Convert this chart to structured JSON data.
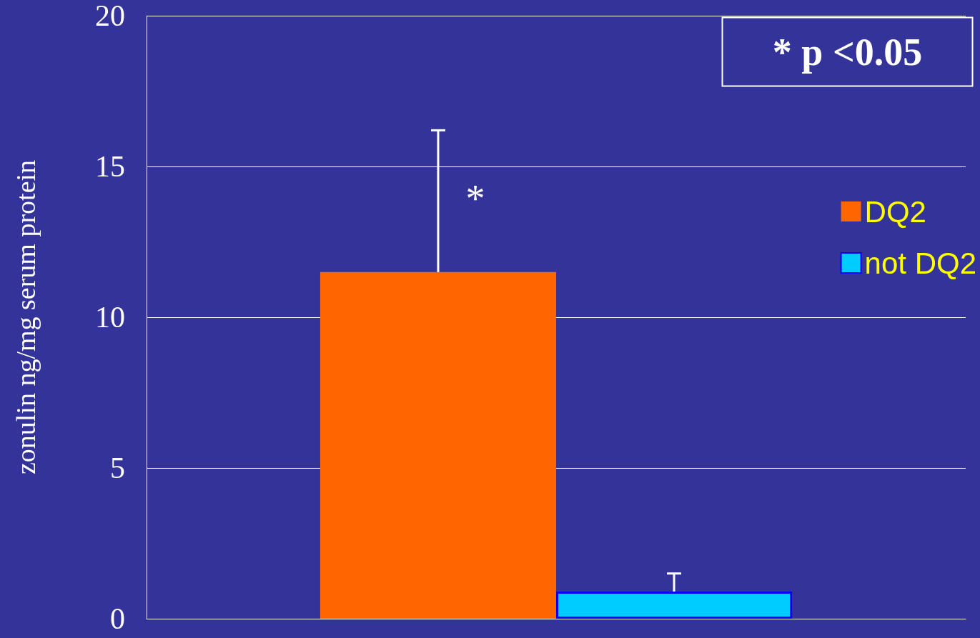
{
  "chart_data": {
    "type": "bar",
    "ylabel": "zonulin ng/mg serum protein",
    "categories": [
      null
    ],
    "series": [
      {
        "name": "DQ2",
        "color": "#ff6600",
        "values": [
          11.5
        ],
        "errors": [
          4.7
        ]
      },
      {
        "name": "not DQ2",
        "color": "#00ccff",
        "values": [
          0.9
        ],
        "errors": [
          0.6
        ]
      }
    ],
    "ylim": [
      0,
      20
    ],
    "yticks": [
      0,
      5,
      10,
      15,
      20
    ],
    "grid": "y",
    "legend": "right",
    "annotations": [
      "* p <0.05",
      "*"
    ]
  }
}
